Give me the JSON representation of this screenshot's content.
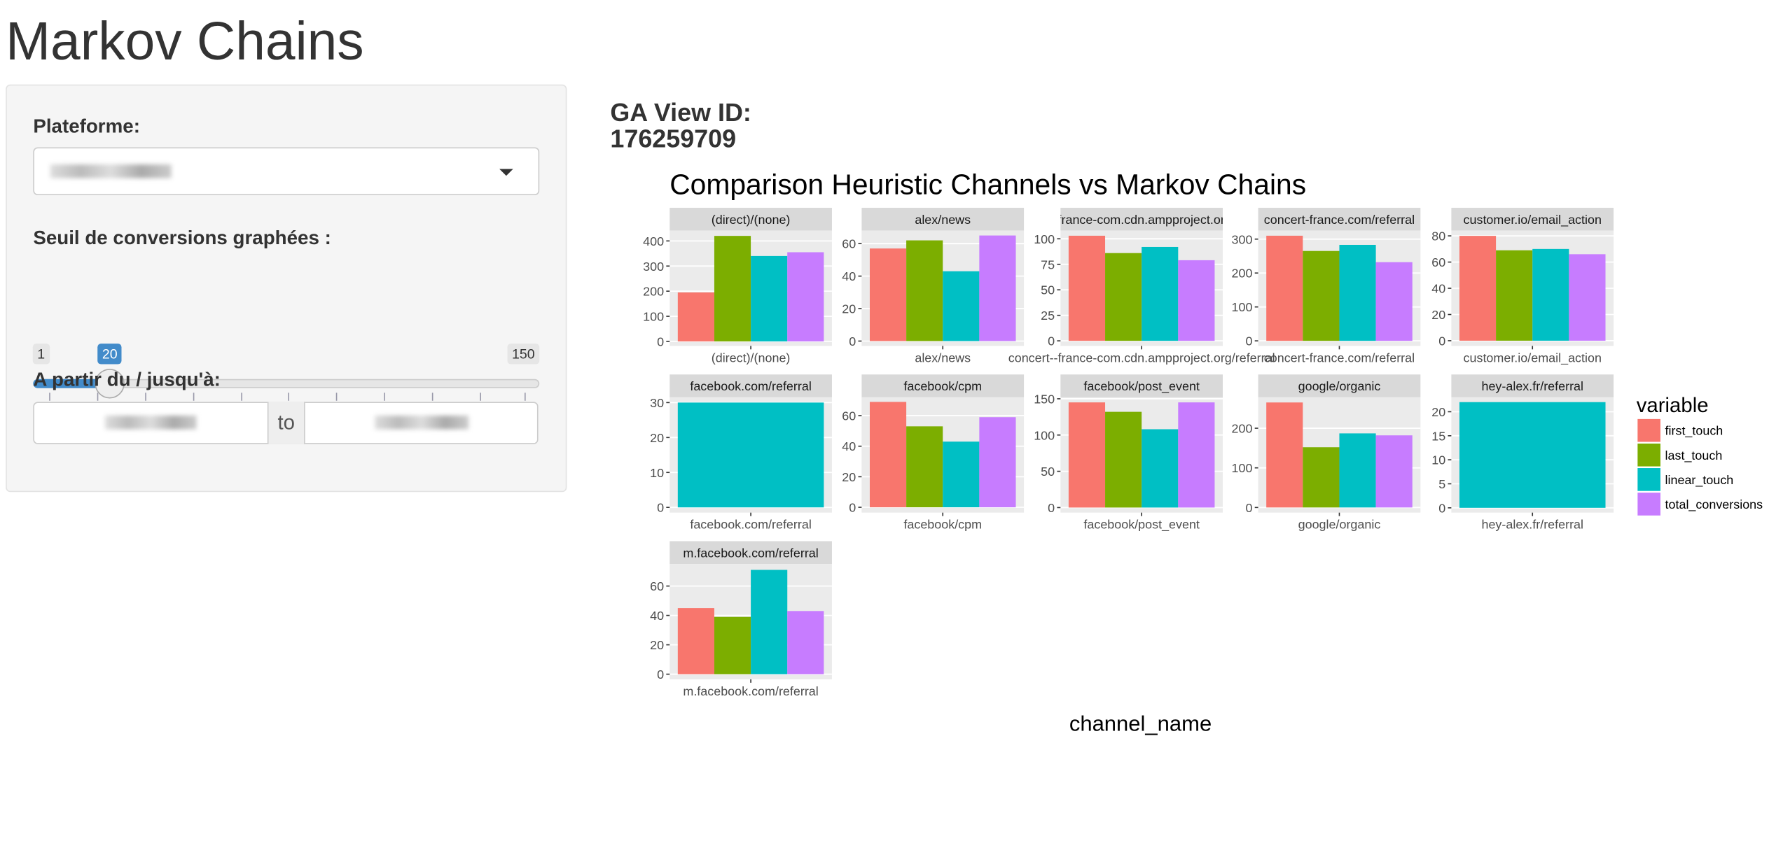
{
  "title": "Markov Chains",
  "sidebar": {
    "platform_label": "Plateforme:",
    "threshold_label": "Seuil de conversions graphées :",
    "slider": {
      "min": 1,
      "max": 150,
      "value": 20,
      "ticks": [
        1,
        16,
        31,
        46,
        61,
        76,
        91,
        106,
        121,
        136,
        150
      ]
    },
    "date_label": "A partir du / jusqu'à:",
    "date_separator": "to"
  },
  "ga_view": {
    "label": "GA View ID:",
    "id": "176259709"
  },
  "chart_data": {
    "type": "bar",
    "title": "Comparison Heuristic Channels vs Markov Chains",
    "x_label": "channel_name",
    "legend_title": "variable",
    "series": [
      {
        "name": "first_touch",
        "color": "#F8766D",
        "values": [
          195,
          57,
          103,
          310,
          80,
          null,
          69,
          145,
          265,
          null,
          45
        ]
      },
      {
        "name": "last_touch",
        "color": "#7CAE00",
        "values": [
          420,
          62,
          86,
          265,
          69,
          null,
          53,
          132,
          152,
          null,
          39
        ]
      },
      {
        "name": "linear_touch",
        "color": "#00BFC4",
        "values": [
          340,
          43,
          92,
          283,
          70,
          30,
          43,
          108,
          187,
          22,
          71
        ]
      },
      {
        "name": "total_conversions",
        "color": "#C77CFF",
        "values": [
          355,
          65,
          79,
          232,
          66,
          null,
          59,
          145,
          182,
          null,
          43
        ]
      }
    ],
    "facets": [
      {
        "label": "(direct)/(none)",
        "category": "(direct)/(none)",
        "ylim": [
          -18,
          441
        ],
        "yticks": [
          0,
          100,
          200,
          300,
          400
        ]
      },
      {
        "label": "alex/news",
        "category": "alex/news",
        "ylim": [
          -3,
          68
        ],
        "yticks": [
          0,
          20,
          40,
          60
        ]
      },
      {
        "label": "concert--france-com.cdn.ampproject.org/referral",
        "category": "concert--france-com.cdn.ampproject.org/referral",
        "ylim": [
          -5,
          108
        ],
        "yticks": [
          0,
          25,
          50,
          75,
          100
        ]
      },
      {
        "label": "concert-france.com/referral",
        "category": "concert-france.com/referral",
        "ylim": [
          -15,
          325
        ],
        "yticks": [
          0,
          100,
          200,
          300
        ]
      },
      {
        "label": "customer.io/email_action",
        "category": "customer.io/email_action",
        "ylim": [
          -4,
          84
        ],
        "yticks": [
          0,
          20,
          40,
          60,
          80
        ]
      },
      {
        "label": "facebook.com/referral",
        "category": "facebook.com/referral",
        "ylim": [
          -1.5,
          31.5
        ],
        "yticks": [
          0,
          10,
          20,
          30
        ]
      },
      {
        "label": "facebook/cpm",
        "category": "facebook/cpm",
        "ylim": [
          -3.5,
          72
        ],
        "yticks": [
          0,
          20,
          40,
          60
        ]
      },
      {
        "label": "facebook/post_event",
        "category": "facebook/post_event",
        "ylim": [
          -7,
          152
        ],
        "yticks": [
          0,
          50,
          100,
          150
        ]
      },
      {
        "label": "google/organic",
        "category": "google/organic",
        "ylim": [
          -13,
          278
        ],
        "yticks": [
          0,
          100,
          200
        ]
      },
      {
        "label": "hey-alex.fr/referral",
        "category": "hey-alex.fr/referral",
        "ylim": [
          -1,
          23
        ],
        "yticks": [
          0,
          5,
          10,
          15,
          20
        ]
      },
      {
        "label": "m.facebook.com/referral",
        "category": "m.facebook.com/referral",
        "ylim": [
          -3.5,
          75
        ],
        "yticks": [
          0,
          20,
          40,
          60
        ]
      }
    ]
  }
}
